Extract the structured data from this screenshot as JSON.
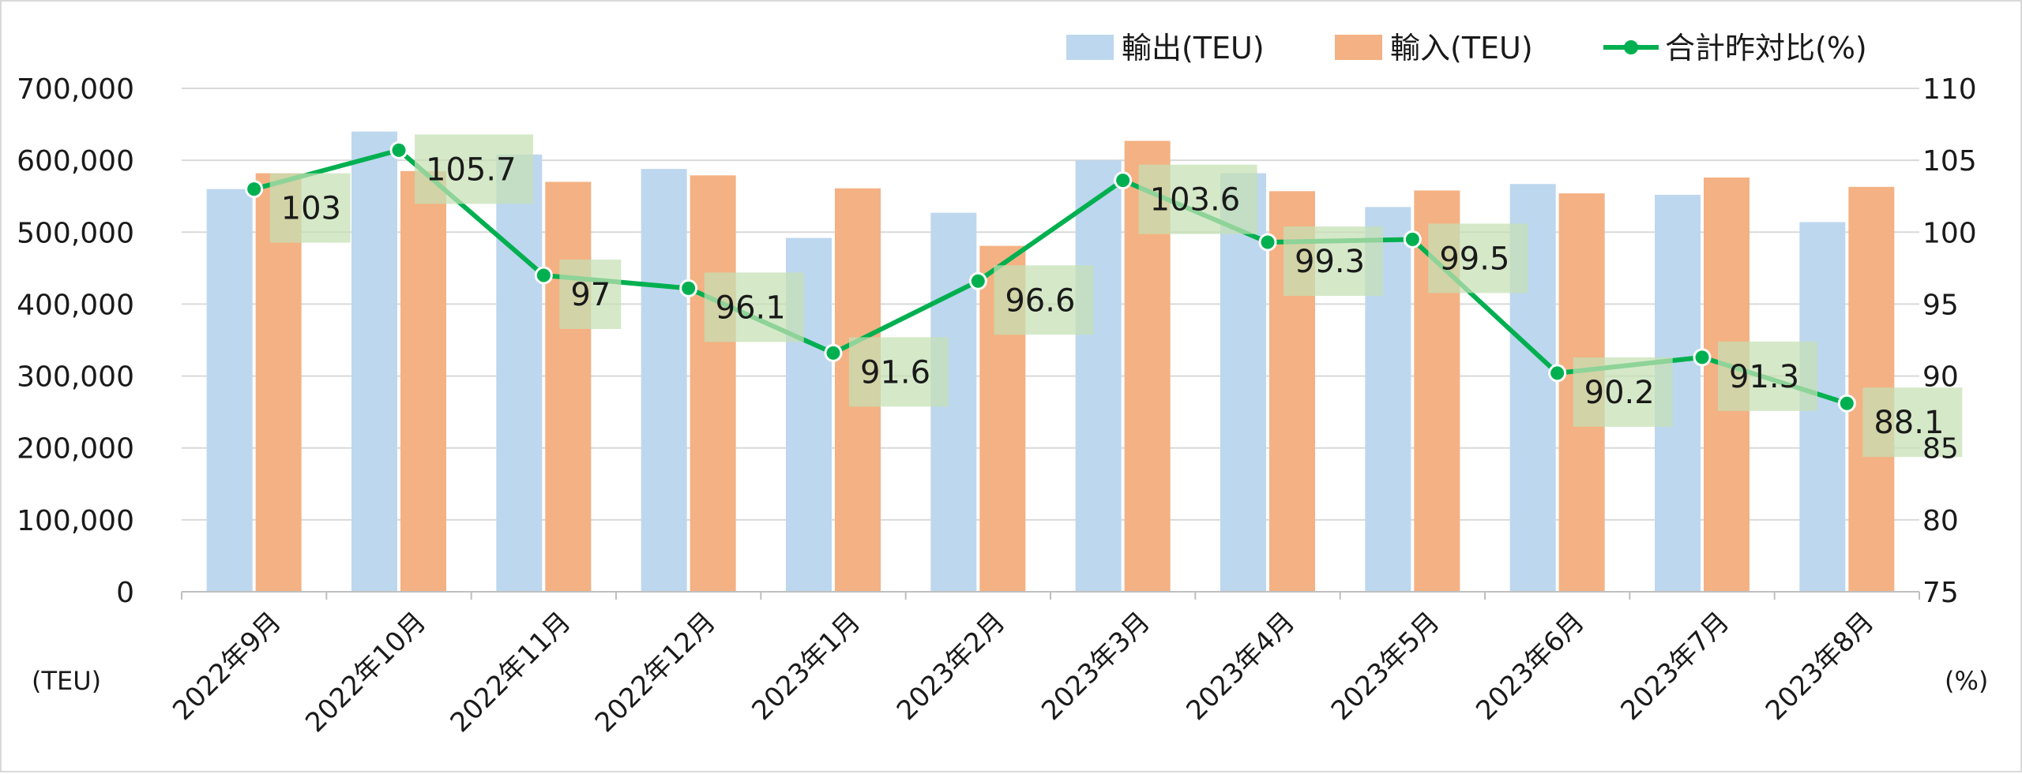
{
  "chart_data": {
    "type": "bar",
    "categories": [
      "2022年9月",
      "2022年10月",
      "2022年11月",
      "2022年12月",
      "2023年1月",
      "2023年2月",
      "2023年3月",
      "2023年4月",
      "2023年5月",
      "2023年6月",
      "2023年7月",
      "2023年8月"
    ],
    "series": [
      {
        "name": "輸出(TEU)",
        "type": "bar",
        "axis": "left",
        "color": "#bdd7ee",
        "values": [
          560000,
          640000,
          608000,
          588000,
          492000,
          527000,
          600000,
          582000,
          535000,
          567000,
          552000,
          514000
        ]
      },
      {
        "name": "輸入(TEU)",
        "type": "bar",
        "axis": "left",
        "color": "#f4b183",
        "values": [
          582000,
          585000,
          570000,
          579000,
          561000,
          481000,
          627000,
          557000,
          558000,
          554000,
          576000,
          563000
        ]
      },
      {
        "name": "合計昨対比(%)",
        "type": "line",
        "axis": "right",
        "color": "#00b050",
        "values": [
          103,
          105.7,
          97,
          96.1,
          91.6,
          96.6,
          103.6,
          99.3,
          99.5,
          90.2,
          91.3,
          88.1
        ],
        "data_labels": [
          "103",
          "105.7",
          "97",
          "96.1",
          "91.6",
          "96.6",
          "103.6",
          "99.3",
          "99.5",
          "90.2",
          "91.3",
          "88.1"
        ]
      }
    ],
    "y_left": {
      "ylim": [
        0,
        700000
      ],
      "ticks": [
        "0",
        "100,000",
        "200,000",
        "300,000",
        "400,000",
        "500,000",
        "600,000",
        "700,000"
      ],
      "unit": "(TEU)"
    },
    "y_right": {
      "ylim": [
        75,
        110
      ],
      "ticks": [
        "75",
        "80",
        "85",
        "90",
        "95",
        "100",
        "105",
        "110"
      ],
      "unit": "(%)"
    },
    "grid": true,
    "legend_position": "top-right",
    "label_box_color": "#c5e0b4"
  }
}
